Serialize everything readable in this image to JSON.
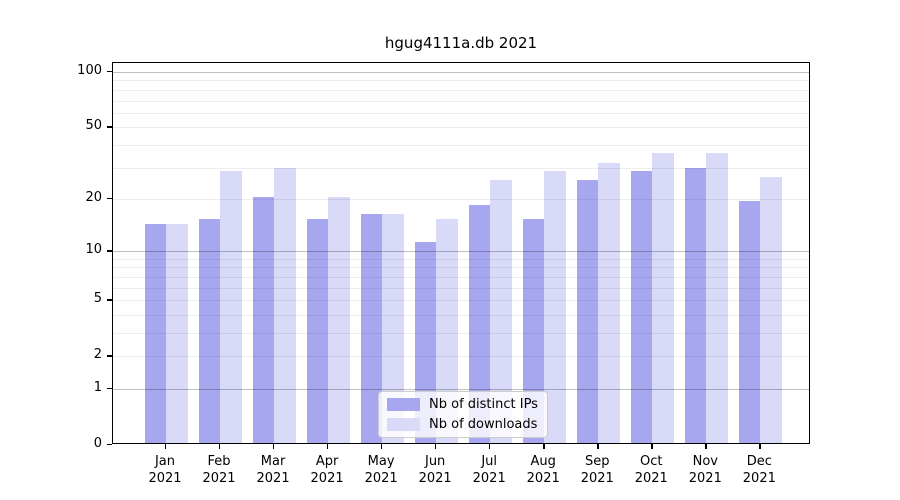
{
  "title": "hgug4111a.db 2021",
  "chart_data": {
    "type": "bar",
    "scale": "log1p",
    "title": "hgug4111a.db 2021",
    "categories": [
      "Jan",
      "Feb",
      "Mar",
      "Apr",
      "May",
      "Jun",
      "Jul",
      "Aug",
      "Sep",
      "Oct",
      "Nov",
      "Dec"
    ],
    "category_year": "2021",
    "series": [
      {
        "name": "Nb of distinct IPs",
        "color": "#a7a7f0",
        "values": [
          14,
          15,
          20,
          15,
          16,
          11,
          18,
          15,
          25,
          28,
          29,
          19
        ]
      },
      {
        "name": "Nb of downloads",
        "color": "#d9d9f8",
        "values": [
          14,
          28,
          29,
          20,
          16,
          15,
          25,
          28,
          31,
          35,
          35,
          26
        ]
      }
    ],
    "ylabel": "",
    "xlabel": "",
    "ylim": [
      0,
      112
    ],
    "yticks": [
      0,
      1,
      2,
      5,
      10,
      20,
      50,
      100
    ],
    "grid_major": [
      1,
      10,
      100
    ],
    "grid_minor": [
      2,
      3,
      4,
      5,
      6,
      7,
      8,
      9,
      20,
      30,
      40,
      50,
      60,
      70,
      80,
      90
    ],
    "legend_position": "lower center",
    "grid": "on"
  }
}
